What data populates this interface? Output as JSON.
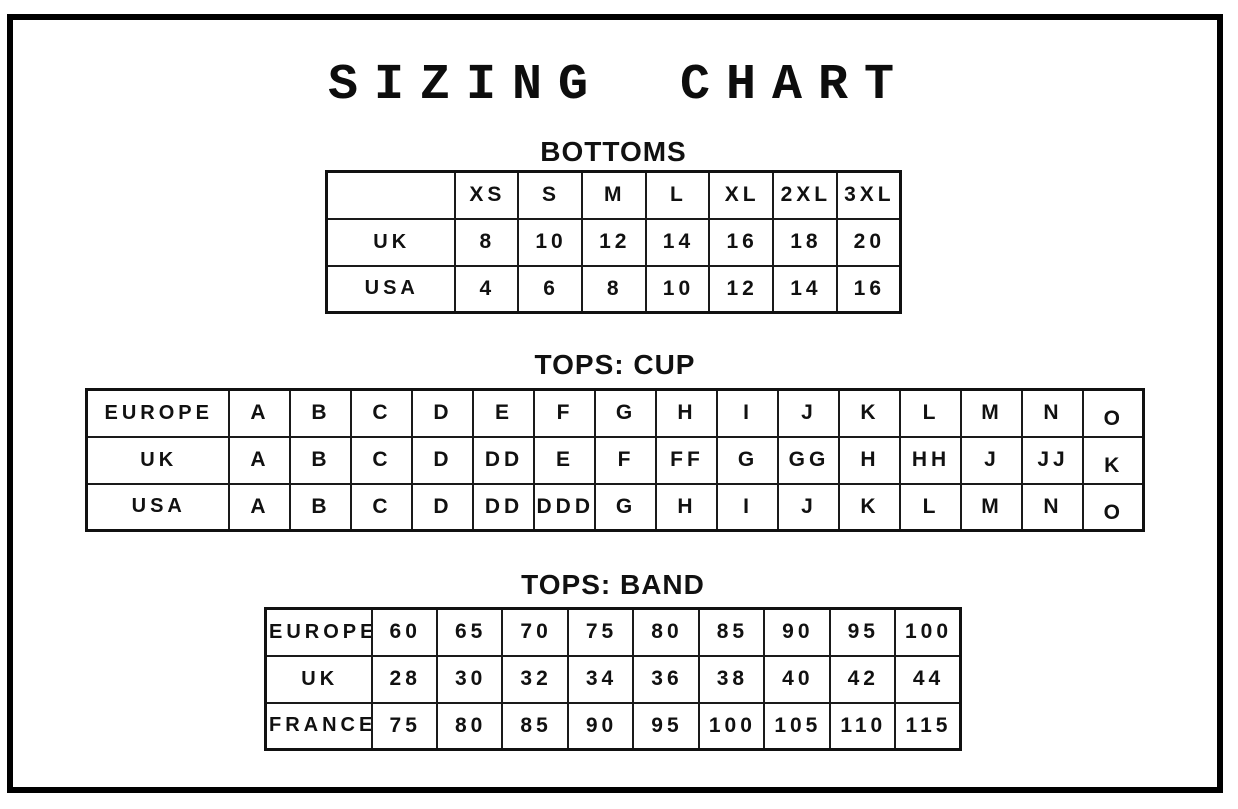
{
  "page": {
    "title": "SIZING CHART",
    "colors": {
      "background": "#ffffff",
      "ink": "#111111",
      "frame": "#000000"
    }
  },
  "sections": {
    "bottoms": {
      "heading": "BOTTOMS",
      "header_row": [
        "",
        "XS",
        "S",
        "M",
        "L",
        "XL",
        "2XL",
        "3XL"
      ],
      "rows": [
        {
          "label": "UK",
          "values": [
            "8",
            "10",
            "12",
            "14",
            "16",
            "18",
            "20"
          ]
        },
        {
          "label": "USA",
          "values": [
            "4",
            "6",
            "8",
            "10",
            "12",
            "14",
            "16"
          ]
        }
      ]
    },
    "tops_cup": {
      "heading": "TOPS: CUP",
      "rows": [
        {
          "label": "EUROPE",
          "values": [
            "A",
            "B",
            "C",
            "D",
            "E",
            "F",
            "G",
            "H",
            "I",
            "J",
            "K",
            "L",
            "M",
            "N",
            "O"
          ]
        },
        {
          "label": "UK",
          "values": [
            "A",
            "B",
            "C",
            "D",
            "DD",
            "E",
            "F",
            "FF",
            "G",
            "GG",
            "H",
            "HH",
            "J",
            "JJ",
            "K"
          ]
        },
        {
          "label": "USA",
          "values": [
            "A",
            "B",
            "C",
            "D",
            "DD",
            "DDD",
            "G",
            "H",
            "I",
            "J",
            "K",
            "L",
            "M",
            "N",
            "O"
          ]
        }
      ]
    },
    "tops_band": {
      "heading": "TOPS: BAND",
      "rows": [
        {
          "label": "EUROPE",
          "values": [
            "60",
            "65",
            "70",
            "75",
            "80",
            "85",
            "90",
            "95",
            "100"
          ]
        },
        {
          "label": "UK",
          "values": [
            "28",
            "30",
            "32",
            "34",
            "36",
            "38",
            "40",
            "42",
            "44"
          ]
        },
        {
          "label": "FRANCE",
          "values": [
            "75",
            "80",
            "85",
            "90",
            "95",
            "100",
            "105",
            "110",
            "115"
          ]
        }
      ]
    }
  }
}
